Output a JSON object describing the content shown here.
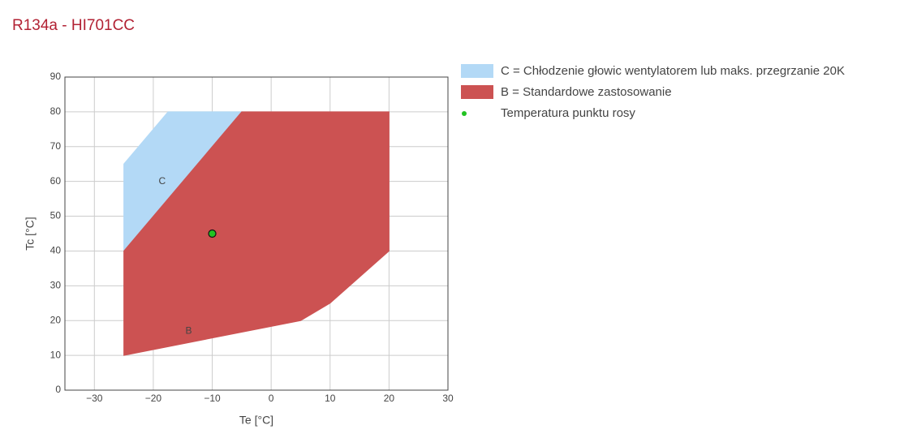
{
  "chart_data": {
    "type": "scatter",
    "title": "R134a - HI701CC",
    "x_label": "Te [°C]",
    "y_label": "Tc [°C]",
    "xlim": [
      -35,
      30
    ],
    "ylim": [
      0,
      90
    ],
    "xticks": [
      {
        "value": -30,
        "label": "−30"
      },
      {
        "value": -20,
        "label": "−20"
      },
      {
        "value": -10,
        "label": "−10"
      },
      0,
      10,
      20,
      30
    ],
    "yticks": [
      0,
      10,
      20,
      30,
      40,
      50,
      60,
      70,
      80,
      90
    ],
    "grid": true,
    "legend": "right",
    "series": [
      {
        "name": "C = Chłodzenie głowic wentylatorem lub maks. przegrzanie 20K",
        "color": "#b3d9f6",
        "fill": "toself",
        "x": [
          -25,
          -25,
          -17.5,
          -5
        ],
        "y": [
          40,
          65,
          80,
          80
        ]
      },
      {
        "name": "B = Standardowe zastosowanie",
        "color": "#cc5252",
        "fill": "toself",
        "x": [
          -25,
          -25,
          -5,
          20,
          20,
          10,
          5
        ],
        "y": [
          10,
          40,
          80,
          80,
          40,
          25,
          20
        ]
      },
      {
        "name": "Temperatura punktu rosy",
        "color": "#22c322",
        "x": [
          -10
        ],
        "y": [
          45
        ]
      }
    ],
    "annotations": [
      {
        "text": "C",
        "x": -18.5,
        "y": 60
      },
      {
        "text": "B",
        "x": -14,
        "y": 17
      }
    ]
  }
}
